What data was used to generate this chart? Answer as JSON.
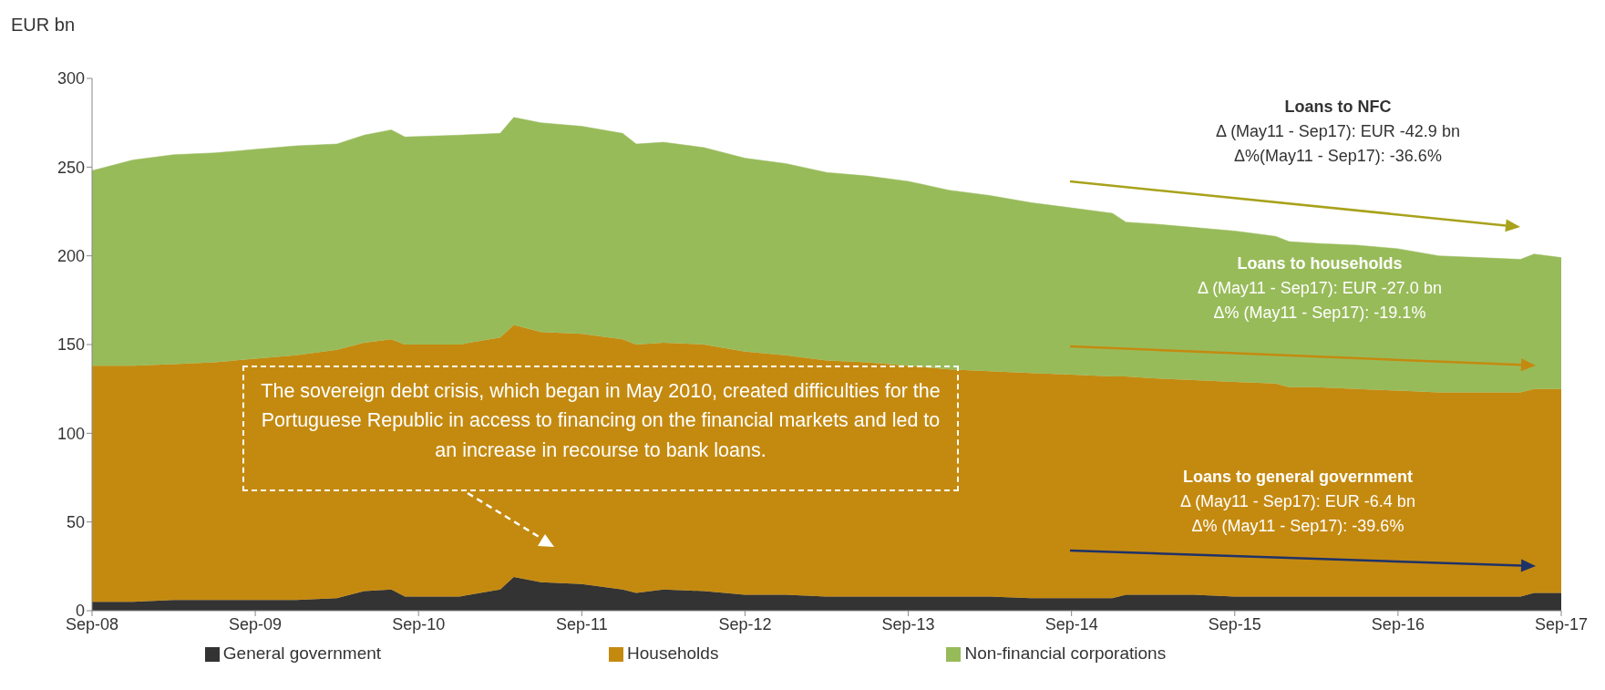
{
  "chart_data": {
    "type": "area",
    "stacked": true,
    "ylabel": "EUR bn",
    "x": [
      "2008-09",
      "2008-12",
      "2009-03",
      "2009-06",
      "2009-09",
      "2009-12",
      "2010-03",
      "2010-05",
      "2010-07",
      "2010-08",
      "2010-12",
      "2011-03",
      "2011-04",
      "2011-06",
      "2011-09",
      "2011-12",
      "2012-01",
      "2012-03",
      "2012-06",
      "2012-09",
      "2012-12",
      "2013-03",
      "2013-06",
      "2013-09",
      "2013-12",
      "2014-03",
      "2014-06",
      "2014-09",
      "2014-12",
      "2015-01",
      "2015-03",
      "2015-06",
      "2015-09",
      "2015-12",
      "2016-01",
      "2016-03",
      "2016-06",
      "2016-09",
      "2016-12",
      "2017-03",
      "2017-06",
      "2017-07",
      "2017-09"
    ],
    "series": [
      {
        "name": "General government",
        "color": "#333333",
        "values": [
          5,
          5,
          6,
          6,
          6,
          6,
          7,
          11,
          12,
          8,
          8,
          12,
          19,
          16,
          15,
          12,
          10,
          12,
          11,
          9,
          9,
          8,
          8,
          8,
          8,
          8,
          7,
          7,
          7,
          9,
          9,
          9,
          8,
          8,
          8,
          8,
          8,
          8,
          8,
          8,
          8,
          10,
          10
        ]
      },
      {
        "name": "Households",
        "color": "#c48a10",
        "values": [
          133,
          133,
          133,
          134,
          136,
          138,
          140,
          140,
          141,
          142,
          142,
          142,
          142,
          141,
          141,
          141,
          140,
          139,
          139,
          137,
          135,
          133,
          132,
          130,
          128,
          127,
          127,
          126,
          125,
          123,
          122,
          121,
          121,
          120,
          118,
          118,
          117,
          116,
          115,
          115,
          115,
          115,
          115
        ]
      },
      {
        "name": "Non-financial corporations",
        "color": "#98bb5a",
        "values": [
          110,
          116,
          118,
          118,
          118,
          118,
          116,
          117,
          118,
          117,
          118,
          115,
          117,
          118,
          117,
          116,
          113,
          113,
          111,
          109,
          108,
          106,
          105,
          104,
          101,
          99,
          96,
          94,
          92,
          87,
          87,
          86,
          85,
          83,
          82,
          81,
          81,
          80,
          77,
          76,
          75,
          76,
          74
        ]
      }
    ],
    "xlim": [
      "2008-09",
      "2017-09"
    ],
    "xticks": [
      {
        "value": "2008-09",
        "label": "Sep-08"
      },
      {
        "value": "2009-09",
        "label": "Sep-09"
      },
      {
        "value": "2010-09",
        "label": "Sep-10"
      },
      {
        "value": "2011-09",
        "label": "Sep-11"
      },
      {
        "value": "2012-09",
        "label": "Sep-12"
      },
      {
        "value": "2013-09",
        "label": "Sep-13"
      },
      {
        "value": "2014-09",
        "label": "Sep-14"
      },
      {
        "value": "2015-09",
        "label": "Sep-15"
      },
      {
        "value": "2016-09",
        "label": "Sep-16"
      },
      {
        "value": "2017-09",
        "label": "Sep-17"
      }
    ],
    "ylim": [
      0,
      300
    ],
    "yticks": [
      0,
      50,
      100,
      150,
      200,
      250,
      300
    ],
    "legend": "bottom",
    "annotations": [
      "Loans to NFC\nΔ (May11 - Sep17): EUR -42.9 bn\nΔ%(May11 - Sep17): -36.6%",
      "Loans to households\nΔ (May11 - Sep17): EUR -27.0 bn\nΔ% (May11 - Sep17): -19.1%",
      "Loans to general government\nΔ (May11 - Sep17): EUR -6.4 bn\nΔ% (May11 - Sep17): -39.6%",
      "The sovereign debt crisis, which began in May 2010, created difficulties for the Portuguese Republic in access to financing on the financial markets and led to an increase in recourse to bank loans."
    ]
  }
}
